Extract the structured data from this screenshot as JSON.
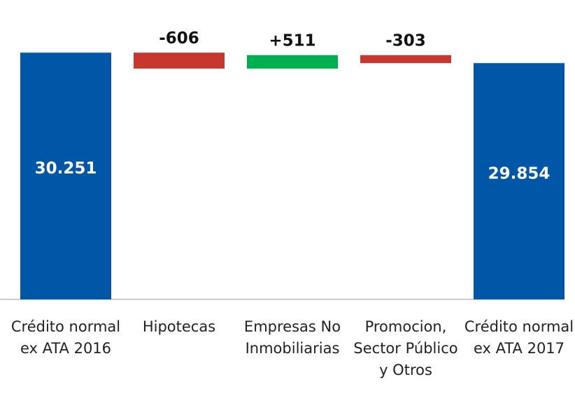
{
  "chart_data": {
    "type": "waterfall",
    "categories": [
      "Crédito normal ex ATA 2016",
      "Hipotecas",
      "Empresas No Inmobiliarias",
      "Promocion, Sector Público y Otros",
      "Crédito normal ex ATA 2017"
    ],
    "values": [
      30251,
      -606,
      511,
      -303,
      29854
    ],
    "value_labels": [
      "30.251",
      "-606",
      "+511",
      "-303",
      "29.854"
    ],
    "measures": [
      "absolute",
      "relative",
      "relative",
      "relative",
      "total"
    ],
    "colors": [
      "#0057a8",
      "#c8372d",
      "#00b050",
      "#c8372d",
      "#0057a8"
    ],
    "ylim": [
      20900,
      31000
    ]
  }
}
